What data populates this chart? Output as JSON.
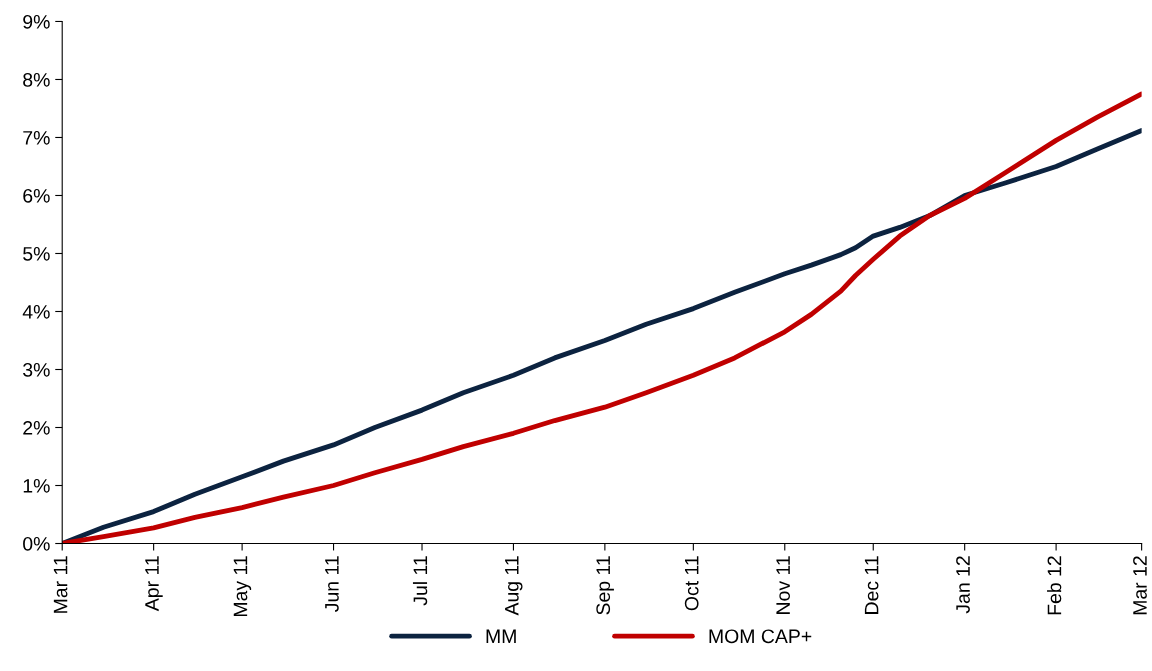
{
  "chart_data": {
    "type": "line",
    "x": [
      "2011-03-01",
      "2011-03-15",
      "2011-04-01",
      "2011-04-15",
      "2011-05-01",
      "2011-05-15",
      "2011-06-01",
      "2011-06-15",
      "2011-07-01",
      "2011-07-15",
      "2011-08-01",
      "2011-08-15",
      "2011-09-01",
      "2011-09-15",
      "2011-10-01",
      "2011-10-15",
      "2011-11-01",
      "2011-11-10",
      "2011-11-20",
      "2011-11-25",
      "2011-12-01",
      "2011-12-10",
      "2011-12-20",
      "2012-01-01",
      "2012-01-15",
      "2012-02-01",
      "2012-02-15",
      "2012-03-01"
    ],
    "series": [
      {
        "name": "MM",
        "color": "#0c2340",
        "values": [
          0,
          0.28,
          0.55,
          0.85,
          1.15,
          1.42,
          1.7,
          2.0,
          2.3,
          2.6,
          2.9,
          3.2,
          3.5,
          3.78,
          4.05,
          4.33,
          4.65,
          4.8,
          4.98,
          5.1,
          5.3,
          5.45,
          5.65,
          6.0,
          6.22,
          6.5,
          6.8,
          7.12
        ]
      },
      {
        "name": "MOM CAP+",
        "color": "#c00000",
        "values": [
          0,
          0.12,
          0.27,
          0.45,
          0.62,
          0.8,
          1.0,
          1.22,
          1.45,
          1.67,
          1.9,
          2.12,
          2.35,
          2.6,
          2.9,
          3.2,
          3.65,
          3.95,
          4.35,
          4.62,
          4.9,
          5.3,
          5.65,
          5.95,
          6.4,
          6.95,
          7.35,
          7.75
        ]
      }
    ],
    "xlim": [
      "2011-03-01",
      "2012-03-01"
    ],
    "xticks": [
      {
        "value": "2011-03-01",
        "label": "Mar 11"
      },
      {
        "value": "2011-04-01",
        "label": "Apr 11"
      },
      {
        "value": "2011-05-01",
        "label": "May 11"
      },
      {
        "value": "2011-06-01",
        "label": "Jun 11"
      },
      {
        "value": "2011-07-01",
        "label": "Jul 11"
      },
      {
        "value": "2011-08-01",
        "label": "Aug 11"
      },
      {
        "value": "2011-09-01",
        "label": "Sep 11"
      },
      {
        "value": "2011-10-01",
        "label": "Oct 11"
      },
      {
        "value": "2011-11-01",
        "label": "Nov 11"
      },
      {
        "value": "2011-12-01",
        "label": "Dec 11"
      },
      {
        "value": "2012-01-01",
        "label": "Jan 12"
      },
      {
        "value": "2012-02-01",
        "label": "Feb 12"
      },
      {
        "value": "2012-03-01",
        "label": "Mar 12"
      }
    ],
    "ylim": [
      0,
      9
    ],
    "yticks": [
      {
        "value": 0,
        "label": "0%"
      },
      {
        "value": 1,
        "label": "1%"
      },
      {
        "value": 2,
        "label": "2%"
      },
      {
        "value": 3,
        "label": "3%"
      },
      {
        "value": 4,
        "label": "4%"
      },
      {
        "value": 5,
        "label": "5%"
      },
      {
        "value": 6,
        "label": "6%"
      },
      {
        "value": 7,
        "label": "7%"
      },
      {
        "value": 8,
        "label": "8%"
      },
      {
        "value": 9,
        "label": "9%"
      }
    ],
    "legend": "bottom",
    "grid": false,
    "marker": "none",
    "line_style": "solid"
  }
}
